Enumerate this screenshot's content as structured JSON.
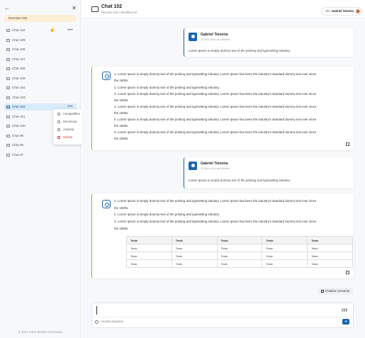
{
  "sidebar": {
    "back_icon": "arrow-left-icon",
    "close_icon": "close-icon",
    "recent_label": "Recente 015",
    "chats": [
      "Chat 110",
      "Chat 109",
      "Chat 108",
      "Chat 107",
      "Chat 106",
      "Chat 105",
      "Chat 104",
      "Chat 103",
      "Chat 102",
      "Chat 101",
      "Chat 100",
      "Chat 99",
      "Chat 98",
      "Chat 97"
    ],
    "active_chat": "Chat 102",
    "context_menu": [
      "Compartilhar",
      "Renomear",
      "Arquivar",
      "Deletar"
    ],
    "footer": "© 2024 Todos direitos reservados"
  },
  "header": {
    "title": "Chat 102",
    "breadcrumb": "Recente 015 / Workflow 02",
    "user_greeting": "Olá,",
    "user_name": "Gabriel Teixeira"
  },
  "messages": [
    {
      "type": "user",
      "name": "Gabriel Teixeira",
      "time": "12 Nov 2024 às 09h00m",
      "text": "Lorem Ipsum is simply dummy text of the printing and typesetting industry."
    },
    {
      "type": "bot",
      "lines": [
        "1. Lorem Ipsum is simply dummy text of the printing and typesetting industry. Lorem Ipsum has been the industry's standard dummy text ever since",
        "the 1500s.",
        "2. Lorem Ipsum is simply dummy text of the printing and typesetting industry.",
        "3. Lorem Ipsum is simply dummy text of the printing and typesetting industry. Lorem Ipsum has been the industry's standard dummy text ever since",
        "the 1500s.",
        "4. Lorem Ipsum is simply dummy text of the printing and typesetting industry. Lorem Ipsum has been the industry's standard dummy text ever since",
        "the 1500s.",
        "5. Lorem Ipsum is simply dummy text of the printing and typesetting industry. Lorem Ipsum has been the industry's standard dummy text ever since",
        "the 1500s.",
        "6. Lorem Ipsum is simply dummy text of the printing and typesetting industry. Lorem Ipsum has been the industry's standard dummy text ever since",
        "the 1500s."
      ]
    },
    {
      "type": "user",
      "name": "Gabriel Teixeira",
      "time": "12 Nov 2024 às 09h00m",
      "text": "Lorem Ipsum is simply dummy text of the printing and typesetting industry."
    },
    {
      "type": "bot",
      "lines": [
        "1. Lorem Ipsum is simply dummy text of the printing and typesetting industry. Lorem Ipsum has been the industry's standard dummy text ever since",
        "the 1500s.",
        "2. Lorem Ipsum is simply dummy text of the printing and typesetting industry.",
        "3. Lorem Ipsum is simply dummy text of the printing and typesetting industry. Lorem Ipsum has been the industry's standard dummy text ever since",
        "the 1500s."
      ],
      "table": {
        "headers": [
          "Teste",
          "Teste",
          "Teste",
          "Teste",
          "Teste"
        ],
        "rows": [
          [
            "Teste",
            "Teste",
            "Teste",
            "Teste",
            "Teste"
          ],
          [
            "Teste",
            "Teste",
            "Teste",
            "Teste",
            "Teste"
          ],
          [
            "Teste",
            "Teste",
            "Teste",
            "Teste",
            "Teste"
          ]
        ]
      }
    }
  ],
  "actions": {
    "finish_label": "Finalizar conversa"
  },
  "composer": {
    "placeholder": "",
    "attach_label": "Anexar arquivos"
  },
  "colors": {
    "accent": "#1a64b2",
    "bot_border": "#8cc63f",
    "active_bg": "#d9ecfb",
    "recent_bg": "#fdeed6",
    "danger": "#d23b3b"
  }
}
